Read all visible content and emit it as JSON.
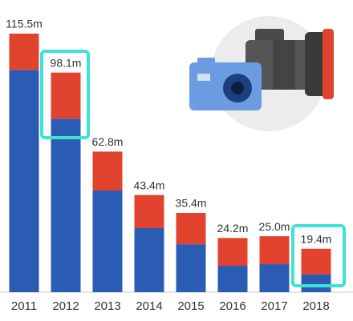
{
  "chart_data": {
    "type": "stacked-bar",
    "categories": [
      "2011",
      "2012",
      "2013",
      "2014",
      "2015",
      "2016",
      "2017",
      "2018"
    ],
    "series": [
      {
        "color": "#2a5cb3",
        "values": [
          99.3,
          77.5,
          45.4,
          28.6,
          21.4,
          11.8,
          12.5,
          7.9
        ]
      },
      {
        "color": "#e2432f",
        "values": [
          16.2,
          20.6,
          17.4,
          14.8,
          14.0,
          12.4,
          12.5,
          11.5
        ]
      }
    ],
    "totals": [
      115.5,
      98.1,
      62.8,
      43.4,
      35.4,
      24.2,
      25.0,
      19.4
    ],
    "total_labels": [
      "115.5m",
      "98.1m",
      "62.8m",
      "43.4m",
      "35.4m",
      "24.2m",
      "25.0m",
      "19.4m"
    ]
  }
}
